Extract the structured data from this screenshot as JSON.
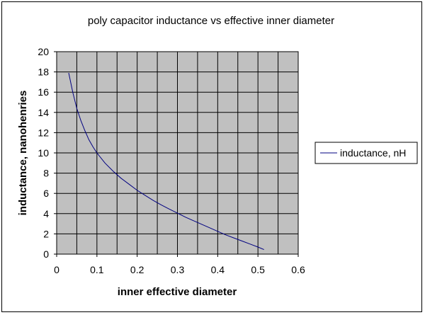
{
  "chart_data": {
    "type": "line",
    "title": "poly capacitor inductance vs effective inner diameter",
    "xlabel": "inner effective diameter",
    "ylabel": "inductance, nanohenries",
    "xlim": [
      0,
      0.6
    ],
    "ylim": [
      0,
      20
    ],
    "x_ticks": [
      "0",
      "0.1",
      "0.2",
      "0.3",
      "0.4",
      "0.5",
      "0.6"
    ],
    "y_ticks": [
      "0",
      "2",
      "4",
      "6",
      "8",
      "10",
      "12",
      "14",
      "16",
      "18",
      "20"
    ],
    "grid": true,
    "legend_position": "right",
    "plot_background": "#c0c0c0",
    "series": [
      {
        "name": "inductance, nH",
        "color": "#000080",
        "x": [
          0.03,
          0.04,
          0.05,
          0.06,
          0.07,
          0.08,
          0.09,
          0.1,
          0.12,
          0.14,
          0.16,
          0.18,
          0.2,
          0.22,
          0.24,
          0.26,
          0.28,
          0.3,
          0.32,
          0.34,
          0.36,
          0.38,
          0.4,
          0.42,
          0.44,
          0.46,
          0.48,
          0.5,
          0.515
        ],
        "y": [
          17.9,
          16.0,
          14.4,
          13.2,
          12.2,
          11.3,
          10.6,
          10.0,
          9.0,
          8.2,
          7.5,
          6.9,
          6.3,
          5.8,
          5.3,
          4.85,
          4.45,
          4.05,
          3.65,
          3.3,
          2.95,
          2.6,
          2.25,
          1.9,
          1.6,
          1.3,
          1.0,
          0.7,
          0.45
        ]
      }
    ]
  }
}
